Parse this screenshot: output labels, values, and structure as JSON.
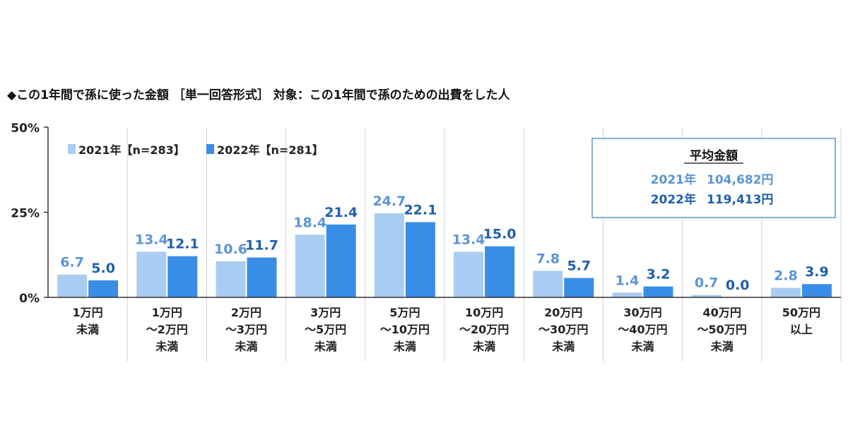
{
  "chart_data": {
    "type": "bar",
    "title": "◆この1年間で孫に使った金額 ［単一回答形式］ 対象：この1年間で孫のための出費をした人",
    "xlabel": "",
    "ylabel": "",
    "ylim": [
      0,
      50
    ],
    "yticks": [
      {
        "value": 0,
        "label": "0%"
      },
      {
        "value": 25,
        "label": "25%"
      },
      {
        "value": 50,
        "label": "50%"
      }
    ],
    "grid": "vertical category separators",
    "legend_position": "top-left",
    "categories": [
      [
        "1万円",
        "未満"
      ],
      [
        "1万円",
        "～2万円",
        "未満"
      ],
      [
        "2万円",
        "～3万円",
        "未満"
      ],
      [
        "3万円",
        "～5万円",
        "未満"
      ],
      [
        "5万円",
        "～10万円",
        "未満"
      ],
      [
        "10万円",
        "～20万円",
        "未満"
      ],
      [
        "20万円",
        "～30万円",
        "未満"
      ],
      [
        "30万円",
        "～40万円",
        "未満"
      ],
      [
        "40万円",
        "～50万円",
        "未満"
      ],
      [
        "50万円",
        "以上"
      ]
    ],
    "series": [
      {
        "name": "2021年【n=283】",
        "color": "#a9cdf2",
        "label_color": "#5b95d5",
        "values": [
          6.7,
          13.4,
          10.6,
          18.4,
          24.7,
          13.4,
          7.8,
          1.4,
          0.7,
          2.8
        ],
        "labels": [
          "6.7",
          "13.4",
          "10.6",
          "18.4",
          "24.7",
          "13.4",
          "7.8",
          "1.4",
          "0.7",
          "2.8"
        ]
      },
      {
        "name": "2022年【n=281】",
        "color": "#3a8de6",
        "label_color": "#1f5fae",
        "values": [
          5.0,
          12.1,
          11.7,
          21.4,
          22.1,
          15.0,
          5.7,
          3.2,
          0.0,
          3.9
        ],
        "labels": [
          "5.0",
          "12.1",
          "11.7",
          "21.4",
          "22.1",
          "15.0",
          "5.7",
          "3.2",
          "0.0",
          "3.9"
        ]
      }
    ],
    "annotation_box": {
      "title": "平均金額",
      "rows": [
        {
          "year": "2021年",
          "amount": "104,682円",
          "color": "#5b95d5"
        },
        {
          "year": "2022年",
          "amount": "119,413円",
          "color": "#1f5fae"
        }
      ],
      "border_color": "#5b95d5"
    }
  }
}
